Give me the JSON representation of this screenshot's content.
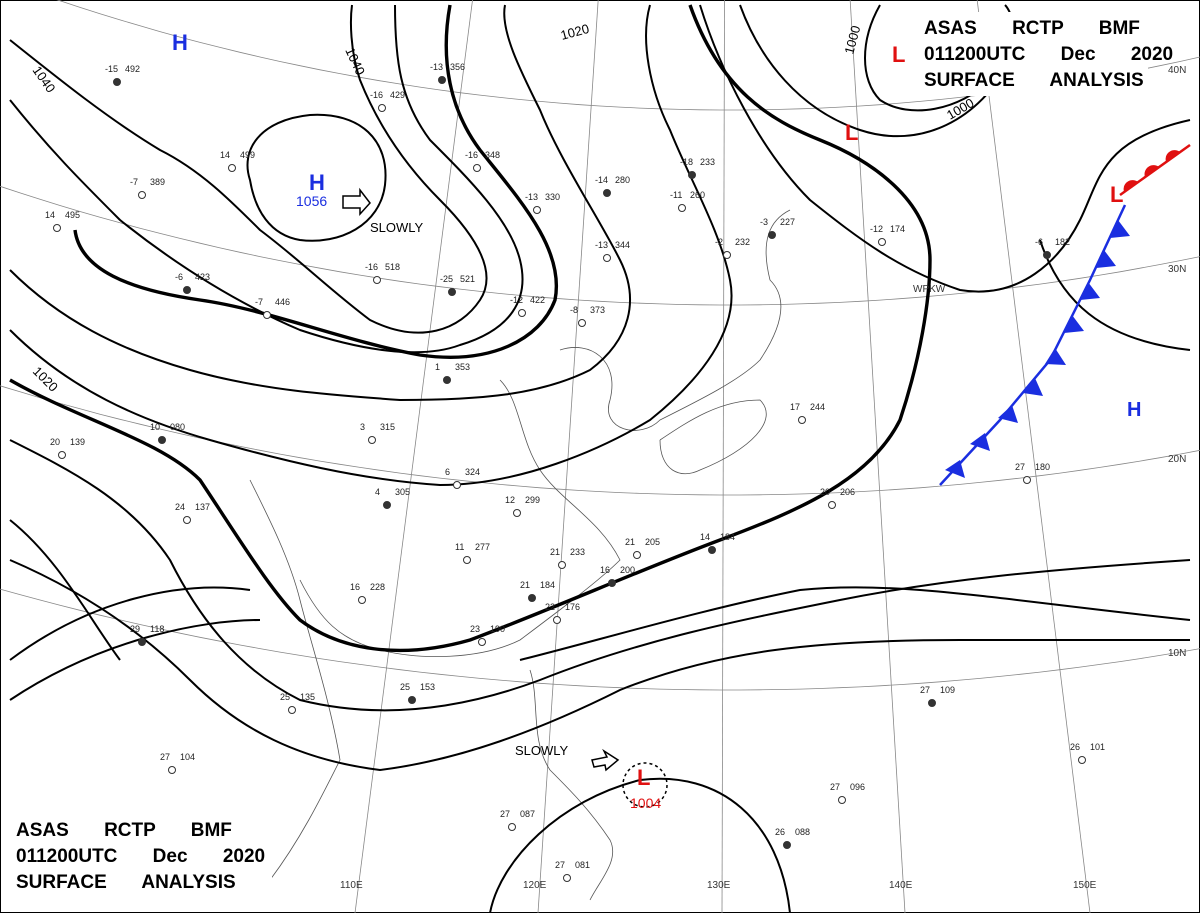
{
  "title_top": [
    "ASAS RCTP BMF",
    "011200UTC Dec 2020",
    "SURFACE ANALYSIS"
  ],
  "title_bottom": [
    "ASAS RCTP BMF",
    "011200UTC Dec 2020",
    "SURFACE ANALYSIS"
  ],
  "isobar_labels": [
    "1040",
    "1040",
    "1020",
    "1020",
    "1000",
    "1000"
  ],
  "centers": [
    {
      "symbol": "H"
    },
    {
      "symbol": "H",
      "pressure": "1056"
    },
    {
      "symbol": "L"
    },
    {
      "symbol": "L"
    },
    {
      "symbol": "L"
    },
    {
      "symbol": "H"
    },
    {
      "symbol": "L",
      "pressure": "1004"
    }
  ],
  "movements": [
    "SLOWLY",
    "SLOWLY"
  ],
  "latitudes": [
    "40N",
    "30N",
    "20N",
    "10N"
  ],
  "longitudes": [
    "110E",
    "120E",
    "130E",
    "140E",
    "150E"
  ],
  "ship_id": "WPKW",
  "stations": [
    [
      "-15",
      "492"
    ],
    [
      "-7",
      "389"
    ],
    [
      "14",
      "495"
    ],
    [
      "-6",
      "423"
    ],
    [
      "-7",
      "446"
    ],
    [
      "14",
      "499"
    ],
    [
      "-13",
      "356"
    ],
    [
      "-16",
      "429"
    ],
    [
      "-16",
      "348"
    ],
    [
      "-14",
      "280"
    ],
    [
      "-13",
      "330"
    ],
    [
      "-13",
      "344"
    ],
    [
      "-18",
      "233"
    ],
    [
      "-11",
      "260"
    ],
    [
      "-16",
      "518"
    ],
    [
      "-25",
      "521"
    ],
    [
      "-12",
      "422"
    ],
    [
      "-8",
      "373"
    ],
    [
      "1",
      "353"
    ],
    [
      "3",
      "315"
    ],
    [
      "6",
      "324"
    ],
    [
      "4",
      "305"
    ],
    [
      "12",
      "299"
    ],
    [
      "11",
      "277"
    ],
    [
      "10",
      "080"
    ],
    [
      "20",
      "139"
    ],
    [
      "24",
      "137"
    ],
    [
      "29",
      "118"
    ],
    [
      "25",
      "135"
    ],
    [
      "27",
      "104"
    ],
    [
      "25",
      "153"
    ],
    [
      "23",
      "190"
    ],
    [
      "22",
      "176"
    ],
    [
      "21",
      "184"
    ],
    [
      "21",
      "233"
    ],
    [
      "21",
      "205"
    ],
    [
      "14",
      "184"
    ],
    [
      "20",
      "206"
    ],
    [
      "27",
      "180"
    ],
    [
      "27",
      "109"
    ],
    [
      "26",
      "101"
    ],
    [
      "27",
      "096"
    ],
    [
      "26",
      "088"
    ],
    [
      "27",
      "087"
    ],
    [
      "27",
      "081"
    ],
    [
      "16",
      "200"
    ],
    [
      "16",
      "228"
    ],
    [
      "17",
      "244"
    ],
    [
      "-3",
      "227"
    ],
    [
      "-2",
      "232"
    ],
    [
      "-12",
      "174"
    ],
    [
      "-6",
      "182"
    ]
  ]
}
